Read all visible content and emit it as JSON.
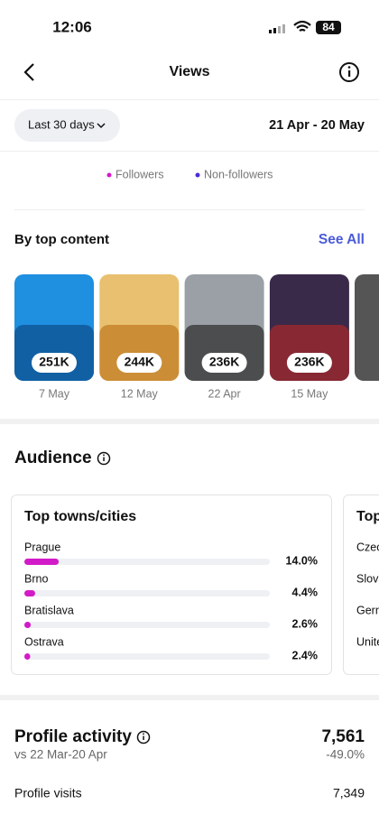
{
  "status": {
    "time": "12:06",
    "battery": "84"
  },
  "header": {
    "title": "Views"
  },
  "filter": {
    "range": "Last 30 days",
    "dates": "21 Apr - 20 May"
  },
  "legend": [
    "Followers",
    "Non-followers"
  ],
  "top_content": {
    "title": "By top content",
    "link": "See All",
    "items": [
      {
        "views": "251K",
        "date": "7 May"
      },
      {
        "views": "244K",
        "date": "12 May"
      },
      {
        "views": "236K",
        "date": "22 Apr"
      },
      {
        "views": "236K",
        "date": "15 May"
      }
    ]
  },
  "audience": {
    "title": "Audience",
    "card": {
      "title": "Top towns/cities",
      "rows": [
        {
          "name": "Prague",
          "value": 14.0,
          "label": "14.0%"
        },
        {
          "name": "Brno",
          "value": 4.4,
          "label": "4.4%"
        },
        {
          "name": "Bratislava",
          "value": 2.6,
          "label": "2.6%"
        },
        {
          "name": "Ostrava",
          "value": 2.4,
          "label": "2.4%"
        }
      ]
    },
    "next_card": {
      "title": "Top",
      "rows": [
        "Czec",
        "Slova",
        "Gern",
        "Unite"
      ]
    }
  },
  "profile_activity": {
    "title": "Profile activity",
    "compare": "vs 22 Mar-20 Apr",
    "total": "7,561",
    "change": "-49.0%",
    "rows": [
      {
        "name": "Profile visits",
        "value": "7,349"
      }
    ]
  }
}
